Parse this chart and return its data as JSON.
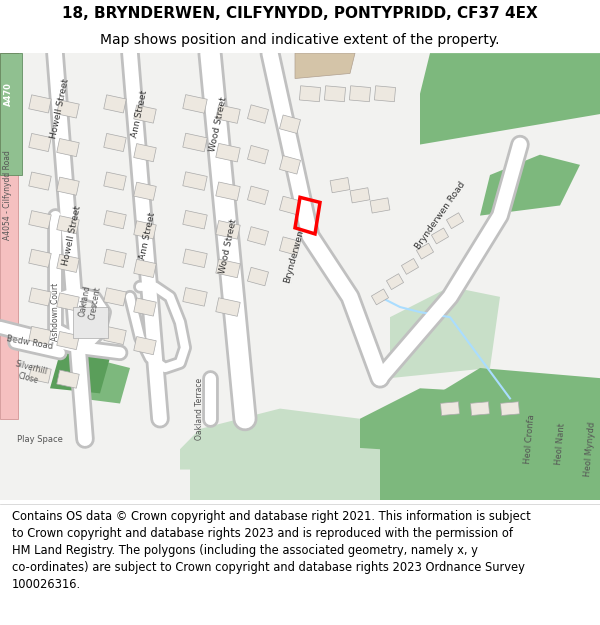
{
  "title": "18, BRYNDERWEN, CILFYNYDD, PONTYPRIDD, CF37 4EX",
  "subtitle": "Map shows position and indicative extent of the property.",
  "footer_text": "Contains OS data © Crown copyright and database right 2021. This information is subject\nto Crown copyright and database rights 2023 and is reproduced with the permission of\nHM Land Registry. The polygons (including the associated geometry, namely x, y\nco-ordinates) are subject to Crown copyright and database rights 2023 Ordnance Survey\n100026316.",
  "title_fontsize": 11,
  "subtitle_fontsize": 10,
  "footer_fontsize": 8.3,
  "fig_width": 6.0,
  "fig_height": 6.25,
  "dpi": 100,
  "header_bg": "#ffffff",
  "road_color": "#ffffff",
  "road_edge_color": "#c0c0c0",
  "green_color": "#7db87d",
  "light_green": "#c8dfc8",
  "pink_color": "#f5c0c0",
  "plot_outline_color": "#ff0000"
}
